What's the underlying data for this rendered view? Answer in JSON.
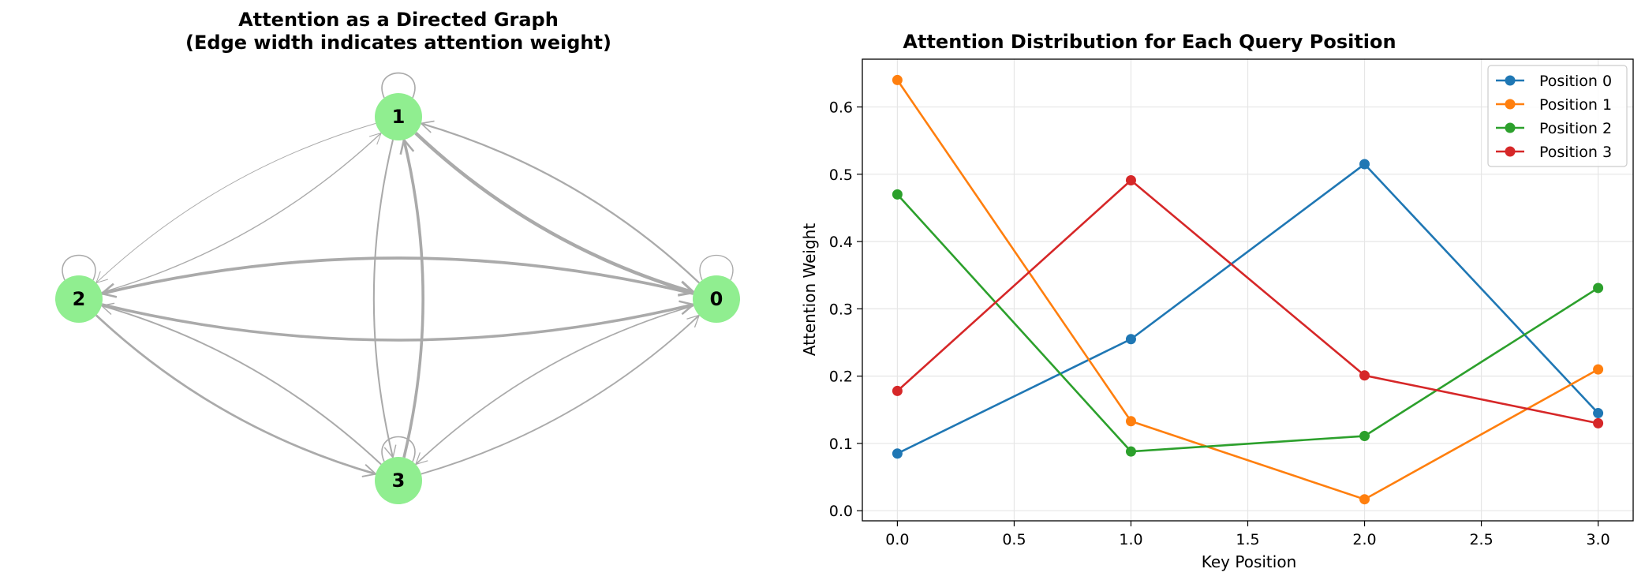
{
  "graph_panel": {
    "title_line1": "Attention as a Directed Graph",
    "title_line2": "(Edge width indicates attention weight)",
    "node_color": "#90ee90",
    "edge_color": "#aaaaaa",
    "nodes": [
      {
        "id": 0,
        "label": "0"
      },
      {
        "id": 1,
        "label": "1"
      },
      {
        "id": 2,
        "label": "2"
      },
      {
        "id": 3,
        "label": "3"
      }
    ],
    "edges": [
      {
        "from": 0,
        "to": 0,
        "weight": 0.085
      },
      {
        "from": 0,
        "to": 1,
        "weight": 0.255
      },
      {
        "from": 0,
        "to": 2,
        "weight": 0.515
      },
      {
        "from": 0,
        "to": 3,
        "weight": 0.145
      },
      {
        "from": 1,
        "to": 0,
        "weight": 0.64
      },
      {
        "from": 1,
        "to": 1,
        "weight": 0.133
      },
      {
        "from": 1,
        "to": 2,
        "weight": 0.017
      },
      {
        "from": 1,
        "to": 3,
        "weight": 0.21
      },
      {
        "from": 2,
        "to": 0,
        "weight": 0.47
      },
      {
        "from": 2,
        "to": 1,
        "weight": 0.088
      },
      {
        "from": 2,
        "to": 2,
        "weight": 0.111
      },
      {
        "from": 2,
        "to": 3,
        "weight": 0.331
      },
      {
        "from": 3,
        "to": 0,
        "weight": 0.178
      },
      {
        "from": 3,
        "to": 1,
        "weight": 0.491
      },
      {
        "from": 3,
        "to": 2,
        "weight": 0.201
      },
      {
        "from": 3,
        "to": 3,
        "weight": 0.13
      }
    ]
  },
  "chart_data": {
    "type": "line",
    "title": "Attention Distribution for Each Query Position",
    "xlabel": "Key Position",
    "ylabel": "Attention Weight",
    "x": [
      0,
      1,
      2,
      3
    ],
    "xlim": [
      -0.15,
      3.15
    ],
    "ylim": [
      -0.015,
      0.671
    ],
    "xticks": [
      "0.0",
      "0.5",
      "1.0",
      "1.5",
      "2.0",
      "2.5",
      "3.0"
    ],
    "yticks": [
      "0.0",
      "0.1",
      "0.2",
      "0.3",
      "0.4",
      "0.5",
      "0.6"
    ],
    "grid": true,
    "legend_position": "top-right",
    "series": [
      {
        "name": "Position 0",
        "color": "#1f77b4",
        "values": [
          0.085,
          0.255,
          0.515,
          0.145
        ]
      },
      {
        "name": "Position 1",
        "color": "#ff7f0e",
        "values": [
          0.64,
          0.133,
          0.017,
          0.21
        ]
      },
      {
        "name": "Position 2",
        "color": "#2ca02c",
        "values": [
          0.47,
          0.088,
          0.111,
          0.331
        ]
      },
      {
        "name": "Position 3",
        "color": "#d62728",
        "values": [
          0.178,
          0.491,
          0.201,
          0.13
        ]
      }
    ]
  }
}
